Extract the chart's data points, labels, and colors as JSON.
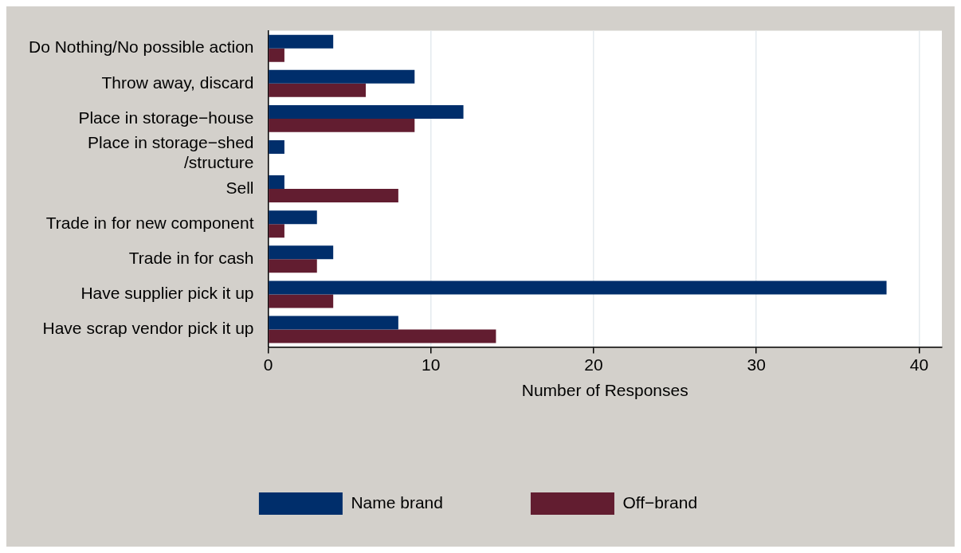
{
  "chart_data": {
    "type": "bar",
    "orientation": "horizontal",
    "xlabel": "Number of Responses",
    "categories": [
      "Do Nothing/No possible action",
      "Throw away, discard",
      "Place in storage−house",
      "Place in storage−shed /structure",
      "Sell",
      "Trade in for new component",
      "Trade in for cash",
      "Have supplier pick it up",
      "Have scrap vendor pick it up"
    ],
    "series": [
      {
        "name": "Name brand",
        "color": "#002e6b",
        "values": [
          4,
          9,
          12,
          1,
          1,
          3,
          4,
          38,
          8
        ]
      },
      {
        "name": "Off−brand",
        "color": "#621d30",
        "values": [
          1,
          6,
          9,
          0,
          8,
          1,
          3,
          4,
          14
        ]
      }
    ],
    "xlim": [
      0,
      41.4
    ],
    "xticks": [
      0,
      10,
      20,
      30,
      40
    ],
    "grid": "x",
    "legend": "bottom"
  }
}
